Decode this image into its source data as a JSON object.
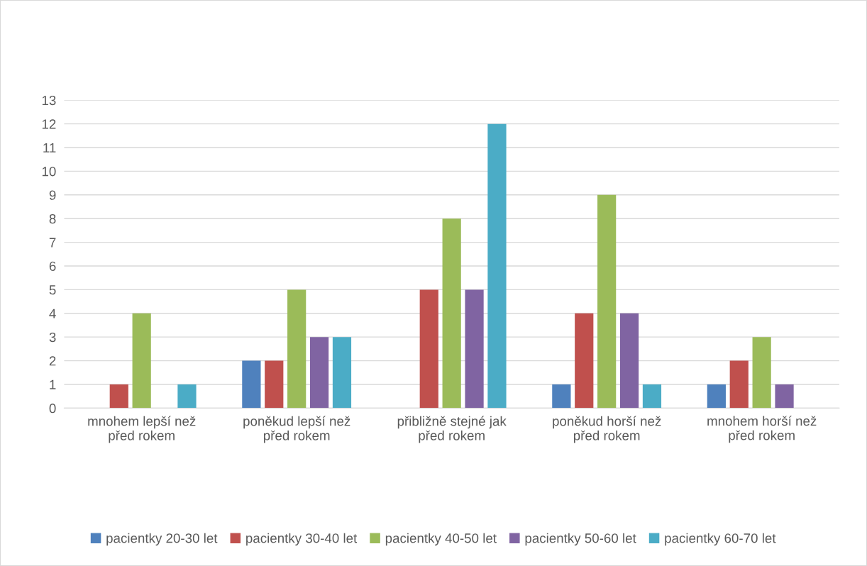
{
  "chart_data": {
    "type": "bar",
    "categories": [
      "mnohem lepší než\npřed rokem",
      "poněkud lepší než\npřed rokem",
      "přibližně stejné jak\npřed rokem",
      "poněkud horší než\npřed rokem",
      "mnohem horší než\npřed rokem"
    ],
    "series": [
      {
        "name": "pacientky 20-30 let",
        "color": "#4f81bd",
        "values": [
          0,
          2,
          0,
          1,
          1
        ]
      },
      {
        "name": "pacientky 30-40 let",
        "color": "#c0504d",
        "values": [
          1,
          2,
          5,
          4,
          2
        ]
      },
      {
        "name": "pacientky 40-50 let",
        "color": "#9bbb59",
        "values": [
          4,
          5,
          8,
          9,
          3
        ]
      },
      {
        "name": "pacientky 50-60 let",
        "color": "#8064a2",
        "values": [
          0,
          3,
          5,
          4,
          1
        ]
      },
      {
        "name": "pacientky 60-70 let",
        "color": "#4bacc6",
        "values": [
          1,
          3,
          12,
          1,
          0
        ]
      }
    ],
    "ylim": [
      0,
      13
    ],
    "yticks": [
      0,
      1,
      2,
      3,
      4,
      5,
      6,
      7,
      8,
      9,
      10,
      11,
      12,
      13
    ],
    "grid": "y",
    "legend": "bottom"
  }
}
